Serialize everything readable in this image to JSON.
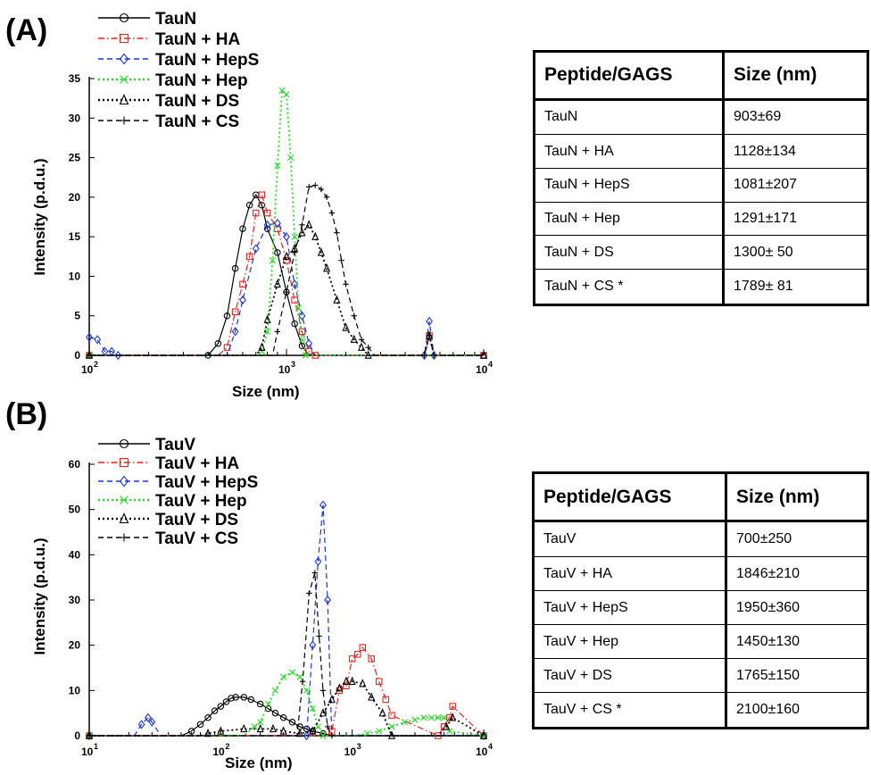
{
  "panels": [
    {
      "letter": "(A)",
      "tick_x_labels": [
        "10",
        "2",
        "10",
        "3",
        "10",
        "4"
      ],
      "table": {
        "headers": [
          "Peptide/GAGS",
          "Size (nm)"
        ],
        "rows": [
          [
            "TauN",
            "903±69"
          ],
          [
            "TauN + HA",
            "1128±134"
          ],
          [
            "TauN + HepS",
            "1081±207"
          ],
          [
            "TauN + Hep",
            "1291±171"
          ],
          [
            "TauN + DS",
            "1300± 50"
          ],
          [
            "TauN + CS *",
            "1789± 81"
          ]
        ]
      }
    },
    {
      "letter": "(B)",
      "tick_x_labels": [
        "10",
        "1",
        "10",
        "2",
        "10",
        "3",
        "10",
        "4"
      ],
      "table": {
        "headers": [
          "Peptide/GAGS",
          "Size (nm)"
        ],
        "rows": [
          [
            "TauV",
            "700±250"
          ],
          [
            "TauV + HA",
            "1846±210"
          ],
          [
            "TauV + HepS",
            "1950±360"
          ],
          [
            "TauV + Hep",
            "1450±130"
          ],
          [
            "TauV + DS",
            "1765±150"
          ],
          [
            "TauV + CS *",
            "2100±160"
          ]
        ]
      }
    }
  ],
  "chart_data": [
    {
      "type": "line",
      "xlabel": "Size (nm)",
      "ylabel": "Intensity (p.d.u.)",
      "x_scale": "log",
      "xlim": [
        100,
        10000
      ],
      "ylim": [
        0,
        35
      ],
      "yticks": [
        0,
        5,
        10,
        15,
        20,
        25,
        30,
        35
      ],
      "legend_position": "top-left",
      "series": [
        {
          "name": "TauN",
          "color": "#000000",
          "marker": "circle",
          "dash": "solid",
          "x": [
            100,
            300,
            400,
            450,
            500,
            550,
            600,
            650,
            700,
            750,
            800,
            900,
            1000,
            1100,
            1200,
            1300,
            10000
          ],
          "y": [
            0,
            0,
            0,
            1.5,
            5,
            11,
            16,
            19,
            20.3,
            19,
            16,
            13,
            8,
            4,
            1.2,
            0,
            0
          ]
        },
        {
          "name": "TauN + HA",
          "color": "#e8211c",
          "marker": "square",
          "dash": "dashdot",
          "x": [
            100,
            450,
            500,
            550,
            600,
            650,
            700,
            750,
            800,
            900,
            1000,
            1100,
            1200,
            1300,
            1400,
            5000,
            5300,
            5600,
            10000
          ],
          "y": [
            0,
            0,
            1,
            5.5,
            9,
            12.5,
            18,
            20.3,
            18,
            16,
            12,
            7,
            3,
            0.5,
            0,
            0,
            2.5,
            0,
            0
          ]
        },
        {
          "name": "TauN + HepS",
          "color": "#1c35d8",
          "marker": "diamond",
          "dash": "dashed",
          "x": [
            100,
            110,
            120,
            130,
            140,
            500,
            550,
            600,
            700,
            800,
            900,
            1000,
            1100,
            1200,
            1300,
            1400,
            5000,
            5300,
            5600,
            10000
          ],
          "y": [
            2.3,
            2.0,
            0.5,
            0.5,
            0,
            0,
            3,
            7,
            13.5,
            16.5,
            16.7,
            15,
            9,
            5,
            1.5,
            0,
            0,
            4.3,
            0,
            0
          ]
        },
        {
          "name": "TauN + Hep",
          "color": "#22dd22",
          "marker": "x",
          "dash": "dotted",
          "x": [
            100,
            700,
            750,
            800,
            850,
            900,
            950,
            1000,
            1050,
            1100,
            1150,
            1200,
            1250,
            10000
          ],
          "y": [
            0,
            0,
            0.5,
            3,
            12,
            24,
            33.5,
            33,
            25,
            15,
            6,
            2,
            0,
            0
          ]
        },
        {
          "name": "TauN + DS",
          "color": "#000000",
          "marker": "triangle",
          "dash": "dotted",
          "x": [
            100,
            700,
            750,
            800,
            900,
            1000,
            1100,
            1200,
            1300,
            1400,
            1500,
            1600,
            1800,
            2000,
            2200,
            2400,
            2600,
            5000,
            5300,
            5600,
            10000
          ],
          "y": [
            0,
            0,
            1,
            4.5,
            9,
            12.5,
            13.5,
            15.5,
            16.5,
            15,
            13,
            11,
            7,
            3.5,
            2,
            1,
            0,
            0,
            2.5,
            0,
            0
          ]
        },
        {
          "name": "TauN + CS",
          "color": "#000000",
          "marker": "plus",
          "dash": "dashed",
          "x": [
            100,
            850,
            900,
            1000,
            1100,
            1200,
            1300,
            1400,
            1500,
            1600,
            1700,
            1800,
            1900,
            2000,
            2200,
            2400,
            2600,
            2800,
            5000,
            5300,
            5600,
            10000
          ],
          "y": [
            0,
            0,
            3,
            8,
            13,
            16.5,
            21.3,
            21.5,
            21,
            20,
            18,
            15.5,
            12,
            9,
            5,
            2,
            1,
            0,
            0,
            2.5,
            0,
            0
          ]
        }
      ]
    },
    {
      "type": "line",
      "xlabel": "Size (nm)",
      "ylabel": "Intensity (p.d.u.)",
      "x_scale": "log",
      "xlim": [
        10,
        10000
      ],
      "ylim": [
        0,
        60
      ],
      "yticks": [
        0,
        10,
        20,
        30,
        40,
        50,
        60
      ],
      "legend_position": "top-left",
      "series": [
        {
          "name": "TauV",
          "color": "#000000",
          "marker": "circle",
          "dash": "solid",
          "x": [
            10,
            50,
            60,
            70,
            80,
            90,
            100,
            110,
            120,
            130,
            150,
            170,
            200,
            230,
            260,
            300,
            350,
            400,
            450,
            500,
            600,
            700,
            10000
          ],
          "y": [
            0,
            0,
            1,
            2.5,
            4,
            5.5,
            6.5,
            7.5,
            8.3,
            8.5,
            8.5,
            8,
            7,
            6,
            5,
            4,
            3,
            2,
            1.5,
            1,
            0.5,
            0,
            0
          ]
        },
        {
          "name": "TauV + HA",
          "color": "#e8211c",
          "marker": "square",
          "dash": "dashdot",
          "x": [
            10,
            650,
            700,
            800,
            900,
            1000,
            1100,
            1200,
            1400,
            1600,
            1800,
            2000,
            4500,
            5000,
            5500,
            5800,
            10000
          ],
          "y": [
            0,
            0,
            1,
            10,
            11,
            17,
            18,
            19.5,
            17,
            12,
            8,
            4.5,
            0,
            2,
            4,
            6.5,
            0
          ]
        },
        {
          "name": "TauV + HepS",
          "color": "#1c35d8",
          "marker": "diamond",
          "dash": "dashed",
          "x": [
            10,
            22,
            25,
            28,
            30,
            35,
            450,
            500,
            550,
            600,
            650,
            700,
            10000
          ],
          "y": [
            0,
            0,
            2.5,
            4,
            3,
            0,
            0,
            20,
            38.5,
            51,
            30,
            0,
            0
          ]
        },
        {
          "name": "TauV + Hep",
          "color": "#22dd22",
          "marker": "x",
          "dash": "dotted",
          "x": [
            10,
            150,
            180,
            200,
            230,
            260,
            300,
            350,
            400,
            450,
            500,
            550,
            600,
            1000,
            1300,
            1600,
            2000,
            2500,
            3000,
            3500,
            4000,
            4500,
            5000,
            5500,
            10000
          ],
          "y": [
            0,
            0,
            2,
            3,
            7,
            10,
            13,
            14,
            13,
            10,
            6,
            2,
            0,
            0,
            0.5,
            1,
            2,
            3,
            3.5,
            4,
            4,
            4,
            4,
            1,
            0
          ]
        },
        {
          "name": "TauV + DS",
          "color": "#000000",
          "marker": "triangle",
          "dash": "dotted",
          "x": [
            10,
            70,
            80,
            100,
            150,
            200,
            250,
            300,
            400,
            500,
            600,
            700,
            800,
            900,
            1000,
            1200,
            1400,
            1700,
            2000,
            4500,
            5200,
            5800,
            10000
          ],
          "y": [
            0,
            0,
            0.5,
            1,
            1.5,
            1.5,
            1.5,
            1,
            0.5,
            1,
            5,
            8,
            10.5,
            12,
            12,
            11.5,
            8.5,
            5,
            0,
            0,
            2,
            4,
            0
          ]
        },
        {
          "name": "TauV + CS",
          "color": "#000000",
          "marker": "plus",
          "dash": "dashed",
          "x": [
            10,
            380,
            420,
            470,
            520,
            560,
            600,
            650,
            700,
            10000
          ],
          "y": [
            0,
            0,
            12,
            31.5,
            36,
            22,
            10,
            2,
            0,
            0
          ]
        }
      ]
    }
  ]
}
